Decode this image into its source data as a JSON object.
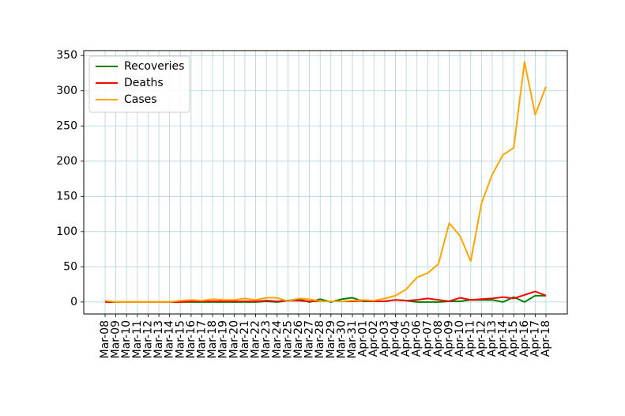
{
  "chart_data": {
    "type": "line",
    "title": "",
    "xlabel": "",
    "ylabel": "",
    "ylim": [
      -17,
      357
    ],
    "yticks": [
      0,
      50,
      100,
      150,
      200,
      250,
      300,
      350
    ],
    "grid": true,
    "grid_color": "#b0d4d8",
    "legend_position": "top-left",
    "x": [
      "Mar-08",
      "Mar-09",
      "Mar-10",
      "Mar-11",
      "Mar-12",
      "Mar-13",
      "Mar-14",
      "Mar-15",
      "Mar-16",
      "Mar-17",
      "Mar-18",
      "Mar-19",
      "Mar-20",
      "Mar-21",
      "Mar-22",
      "Mar-23",
      "Mar-24",
      "Mar-25",
      "Mar-26",
      "Mar-27",
      "Mar-28",
      "Mar-29",
      "Mar-30",
      "Mar-31",
      "Apr-01",
      "Apr-02",
      "Apr-03",
      "Apr-04",
      "Apr-05",
      "Apr-06",
      "Apr-07",
      "Apr-08",
      "Apr-09",
      "Apr-10",
      "Apr-11",
      "Apr-12",
      "Apr-13",
      "Apr-14",
      "Apr-15",
      "Apr-16",
      "Apr-17",
      "Apr-18"
    ],
    "series": [
      {
        "name": "Recoveries",
        "color": "#008000",
        "values": [
          0,
          0,
          0,
          0,
          0,
          0,
          0,
          0,
          0,
          0,
          0,
          0,
          0,
          0,
          0,
          1,
          0,
          2,
          4,
          0,
          4,
          0,
          4,
          6,
          1,
          1,
          1,
          3,
          2,
          0,
          0,
          0,
          1,
          1,
          3,
          3,
          3,
          0,
          7,
          0,
          9,
          9
        ]
      },
      {
        "name": "Deaths",
        "color": "#ff0000",
        "values": [
          0,
          0,
          0,
          0,
          0,
          0,
          0,
          0,
          1,
          1,
          1,
          1,
          1,
          1,
          1,
          2,
          1,
          2,
          2,
          1,
          1,
          1,
          1,
          1,
          2,
          1,
          1,
          3,
          2,
          3,
          5,
          3,
          1,
          6,
          3,
          4,
          5,
          7,
          5,
          10,
          15,
          9
        ]
      },
      {
        "name": "Cases",
        "color": "#ffa500",
        "values": [
          2,
          0,
          0,
          0,
          0,
          0,
          0,
          2,
          3,
          2,
          4,
          3,
          3,
          5,
          3,
          6,
          6,
          1,
          5,
          4,
          1,
          1,
          1,
          2,
          3,
          2,
          5,
          9,
          18,
          35,
          41,
          54,
          112,
          94,
          58,
          140,
          181,
          209,
          219,
          341,
          266,
          306
        ]
      }
    ]
  }
}
